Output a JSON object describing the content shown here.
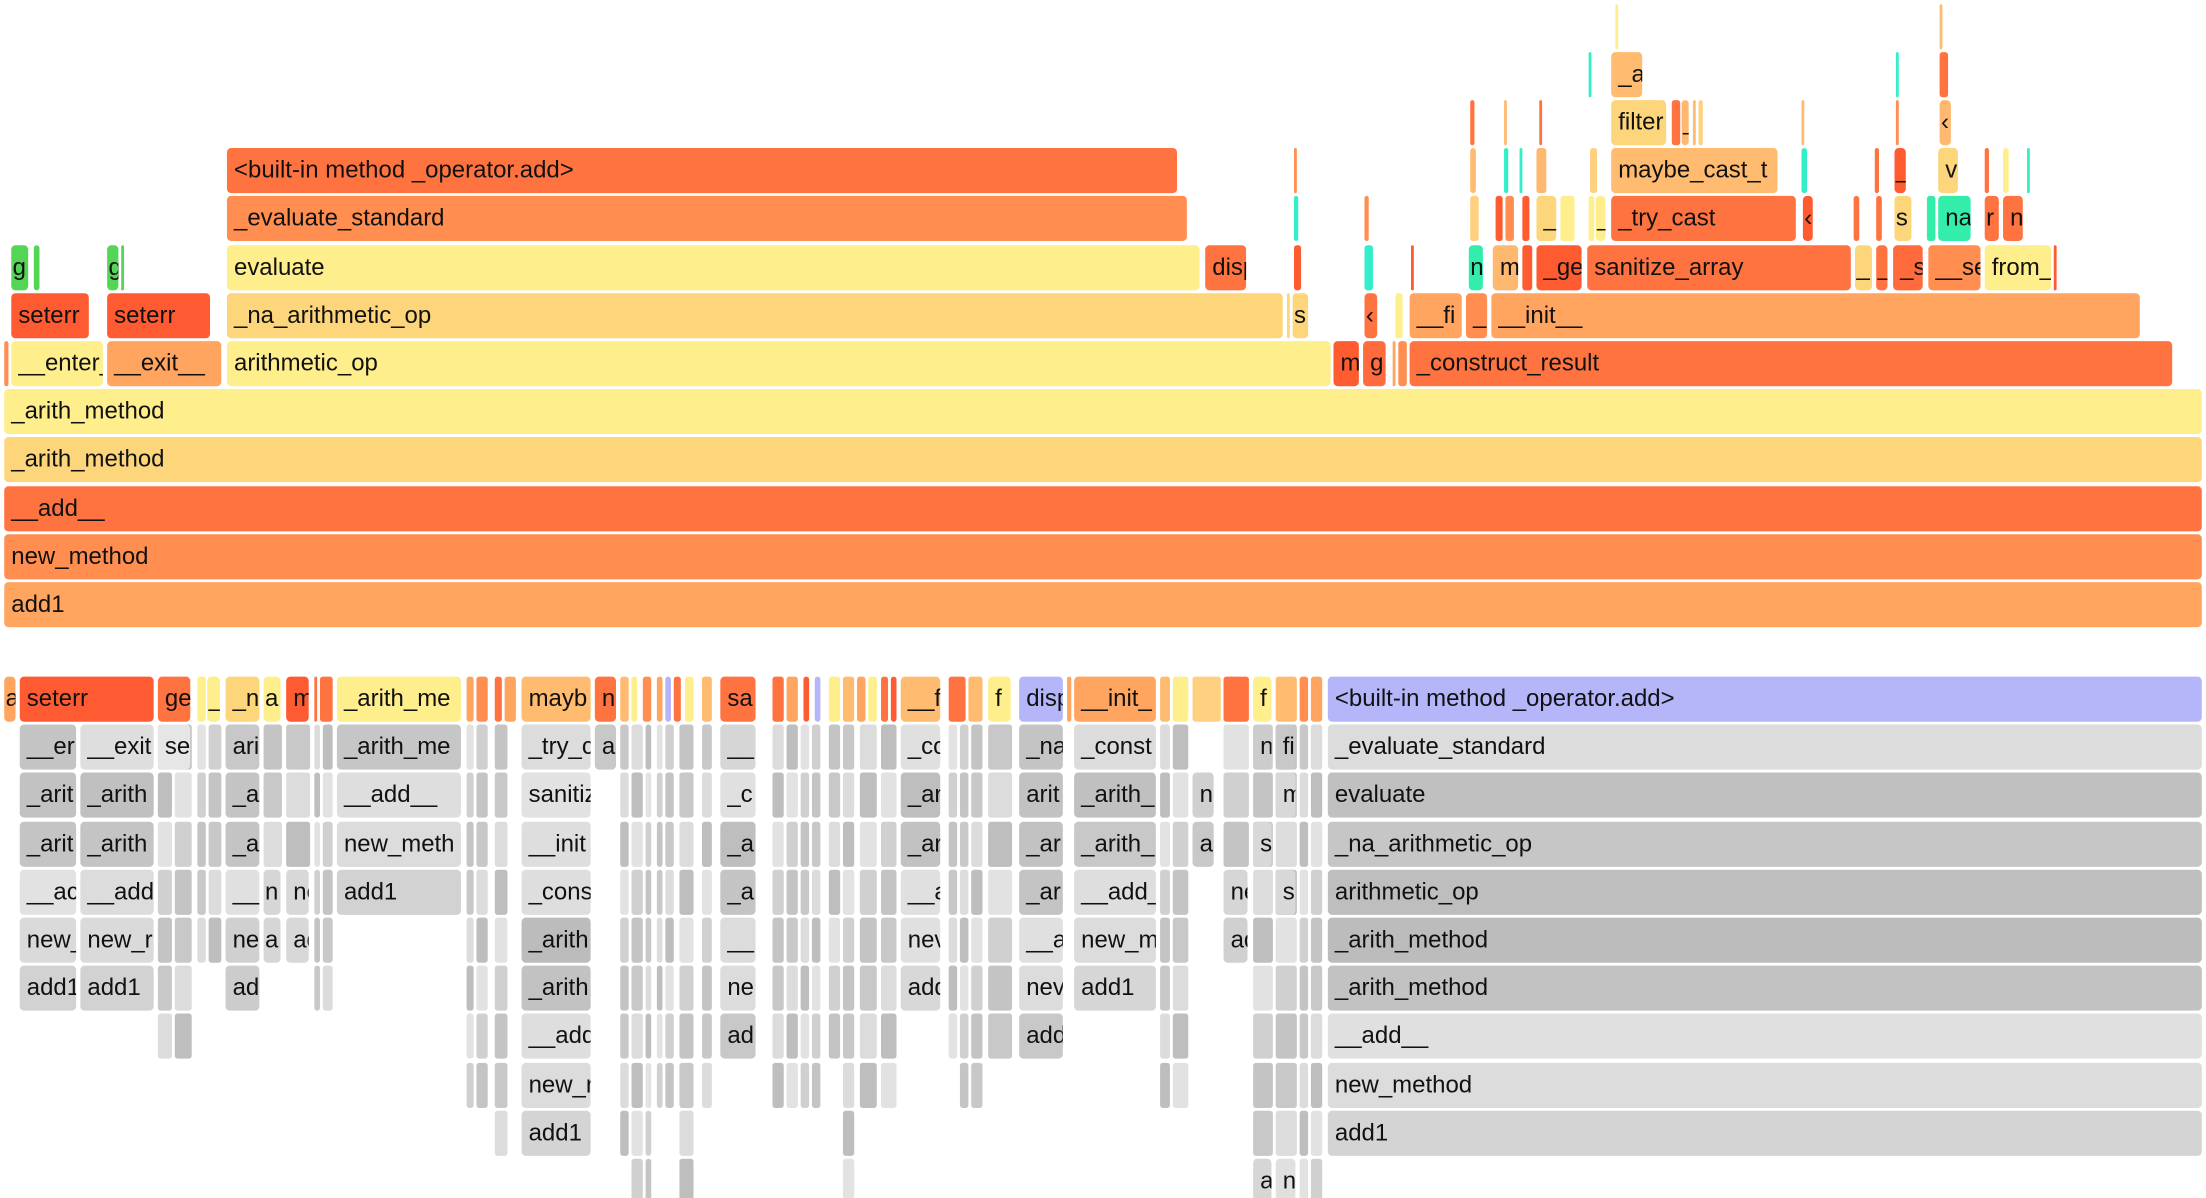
{
  "top_graph": {
    "frames": [
      {
        "label": "add1",
        "color": "#FFA560"
      },
      {
        "label": "new_method",
        "color": "#FF8E50"
      },
      {
        "label": "__add__",
        "color": "#FF7340"
      },
      {
        "label": "_arith_method",
        "color": "#FDD67C"
      },
      {
        "label": "_arith_method",
        "color": "#FFEE8C"
      },
      {
        "label": "__enter__",
        "color": "#FFEE8C"
      },
      {
        "label": "__exit__",
        "color": "#FFA560"
      },
      {
        "label": "arithmetic_op",
        "color": "#FFEE8C"
      },
      {
        "label": "m",
        "color": "#FF5B30"
      },
      {
        "label": "g",
        "color": "#FF6B3C"
      },
      {
        "label": "_construct_result",
        "color": "#FF7340"
      },
      {
        "label": "seterr",
        "color": "#FF5B33"
      },
      {
        "label": "seterr",
        "color": "#FF5B33"
      },
      {
        "label": "_na_arithmetic_op",
        "color": "#FDD67C"
      },
      {
        "label": "s",
        "color": "#FDD67C"
      },
      {
        "label": "‹",
        "color": "#FF7340"
      },
      {
        "label": "__fi",
        "color": "#FFA560"
      },
      {
        "label": "_",
        "color": "#FF8E50"
      },
      {
        "label": "__init__",
        "color": "#FFA560"
      },
      {
        "label": "g",
        "color": "#55D555"
      },
      {
        "label": "g",
        "color": "#55D555"
      },
      {
        "label": "evaluate",
        "color": "#FFEE8C"
      },
      {
        "label": "disp",
        "color": "#FF7340"
      },
      {
        "label": "n",
        "color": "#33EEAA"
      },
      {
        "label": "m",
        "color": "#FFB870"
      },
      {
        "label": "_ge",
        "color": "#FF5B30"
      },
      {
        "label": "sanitize_array",
        "color": "#FF7340"
      },
      {
        "label": "_",
        "color": "#FDD67C"
      },
      {
        "label": "_",
        "color": "#FF7340"
      },
      {
        "label": "_s",
        "color": "#FF6B3C"
      },
      {
        "label": "__se",
        "color": "#FF8E50"
      },
      {
        "label": "from_",
        "color": "#FFEE8C"
      },
      {
        "label": "_evaluate_standard",
        "color": "#FF8E50"
      },
      {
        "label": "_ _",
        "color": "#FDD67C"
      },
      {
        "label": "_",
        "color": "#FFEE8C"
      },
      {
        "label": "_try_cast",
        "color": "#FF7340"
      },
      {
        "label": "‹",
        "color": "#FF5B30"
      },
      {
        "label": "s",
        "color": "#FDD67C"
      },
      {
        "label": "na",
        "color": "#33EEAA"
      },
      {
        "label": "r",
        "color": "#FF7340"
      },
      {
        "label": "n",
        "color": "#FF7340"
      },
      {
        "label": "<built-in method _operator.add>",
        "color": "#FF7340"
      },
      {
        "label": "maybe_cast_t",
        "color": "#FFBB70"
      },
      {
        "label": "_",
        "color": "#FF5B30"
      },
      {
        "label": "v",
        "color": "#FDD67C"
      },
      {
        "label": "filter",
        "color": "#FDD67C"
      },
      {
        "label": "_",
        "color": "#FFB870"
      },
      {
        "label": "‹",
        "color": "#FFB870"
      },
      {
        "label": "_a",
        "color": "#FFBB70"
      }
    ]
  },
  "bottom_graph": {
    "highlight_color": "#B5B5FA",
    "frames": [
      {
        "label": "a",
        "color": "#FFA560"
      },
      {
        "label": "seterr",
        "color": "#FF5B33"
      },
      {
        "label": "ge",
        "color": "#FF7340"
      },
      {
        "label": "_",
        "color": "#FFEE8C"
      },
      {
        "label": "_n",
        "color": "#FDD67C"
      },
      {
        "label": "a",
        "color": "#FFEE8C"
      },
      {
        "label": "m",
        "color": "#FF5B33"
      },
      {
        "label": "_arith_me",
        "color": "#FFEE8C"
      },
      {
        "label": "mayb",
        "color": "#FFBB70"
      },
      {
        "label": "n",
        "color": "#FF7340"
      },
      {
        "label": "sa",
        "color": "#FF7340"
      },
      {
        "label": "__f",
        "color": "#FFBB70"
      },
      {
        "label": "f",
        "color": "#FFEE8C"
      },
      {
        "label": "disp",
        "color": "#B5B5FA"
      },
      {
        "label": "__init_",
        "color": "#FFA560"
      },
      {
        "label": "f",
        "color": "#FFEE8C"
      },
      {
        "label": "<built-in method _operator.add>",
        "color": "#B5B5FA"
      },
      {
        "label": "__er",
        "color": "#C4C4C4"
      },
      {
        "label": "__exit",
        "color": "#DEDEDE"
      },
      {
        "label": "se",
        "color": "#E6E6E6"
      },
      {
        "label": "ari",
        "color": "#C8C8C8"
      },
      {
        "label": "_arith_me",
        "color": "#C6C6C6"
      },
      {
        "label": "_try_c",
        "color": "#DCDCDC"
      },
      {
        "label": "a",
        "color": "#C8C8C8"
      },
      {
        "label": "__",
        "color": "#D6D6D6"
      },
      {
        "label": "_co",
        "color": "#E0E0E0"
      },
      {
        "label": "_na",
        "color": "#C4C4C4"
      },
      {
        "label": "_const",
        "color": "#DCDCDC"
      },
      {
        "label": "n",
        "color": "#CCCCCC"
      },
      {
        "label": "fi",
        "color": "#C8C8C8"
      },
      {
        "label": "_evaluate_standard",
        "color": "#DCDCDC"
      },
      {
        "label": "_arit",
        "color": "#C2C2C2"
      },
      {
        "label": "_arith",
        "color": "#C0C0C0"
      },
      {
        "label": "_a",
        "color": "#C4C4C4"
      },
      {
        "label": "__add__",
        "color": "#DEDEDE"
      },
      {
        "label": "sanitiz",
        "color": "#E2E2E2"
      },
      {
        "label": "_c",
        "color": "#E0E0E0"
      },
      {
        "label": "_ar",
        "color": "#BEBEBE"
      },
      {
        "label": "arit",
        "color": "#C2C2C2"
      },
      {
        "label": "_arith_",
        "color": "#C0C0C0"
      },
      {
        "label": "n",
        "color": "#D0D0D0"
      },
      {
        "label": "m",
        "color": "#D8D8D8"
      },
      {
        "label": "evaluate",
        "color": "#C0C0C0"
      },
      {
        "label": "_arit",
        "color": "#C4C4C4"
      },
      {
        "label": "_arith",
        "color": "#C4C4C4"
      },
      {
        "label": "_a",
        "color": "#C4C4C4"
      },
      {
        "label": "new_meth",
        "color": "#DCDCDC"
      },
      {
        "label": "__init",
        "color": "#DEDEDE"
      },
      {
        "label": "_a",
        "color": "#BEBEBE"
      },
      {
        "label": "_ar",
        "color": "#C2C2C2"
      },
      {
        "label": "_ar",
        "color": "#C2C2C2"
      },
      {
        "label": "_arith_",
        "color": "#C8C8C8"
      },
      {
        "label": "a",
        "color": "#C8C8C8"
      },
      {
        "label": "s",
        "color": "#D8D8D8"
      },
      {
        "label": "_na_arithmetic_op",
        "color": "#C6C6C6"
      },
      {
        "label": "__ac",
        "color": "#E2E2E2"
      },
      {
        "label": "__add",
        "color": "#DCDCDC"
      },
      {
        "label": "__",
        "color": "#E0E0E0"
      },
      {
        "label": "n",
        "color": "#D6D6D6"
      },
      {
        "label": "ne",
        "color": "#D8D8D8"
      },
      {
        "label": "add1",
        "color": "#D2D2D2"
      },
      {
        "label": "_cons",
        "color": "#DEDEDE"
      },
      {
        "label": "_a",
        "color": "#C4C4C4"
      },
      {
        "label": "__a",
        "color": "#E0E0E0"
      },
      {
        "label": "_ar",
        "color": "#C4C4C4"
      },
      {
        "label": "__add_",
        "color": "#DEDEDE"
      },
      {
        "label": "ne",
        "color": "#D6D6D6"
      },
      {
        "label": "s",
        "color": "#D8D8D8"
      },
      {
        "label": "arithmetic_op",
        "color": "#BEBEBE"
      },
      {
        "label": "new_",
        "color": "#DADADA"
      },
      {
        "label": "new_r",
        "color": "#DADADA"
      },
      {
        "label": "ne",
        "color": "#D0D0D0"
      },
      {
        "label": "a",
        "color": "#D6D6D6"
      },
      {
        "label": "ad",
        "color": "#D8D8D8"
      },
      {
        "label": "_arith",
        "color": "#BCBCBC"
      },
      {
        "label": "__",
        "color": "#DCDCDC"
      },
      {
        "label": "nev",
        "color": "#E0E0E0"
      },
      {
        "label": "__a",
        "color": "#E0E0E0"
      },
      {
        "label": "new_m",
        "color": "#DCDCDC"
      },
      {
        "label": "ad",
        "color": "#D0D0D0"
      },
      {
        "label": "_arith_method",
        "color": "#BCBCBC"
      },
      {
        "label": "add1",
        "color": "#D2D2D2"
      },
      {
        "label": "add1",
        "color": "#D2D2D2"
      },
      {
        "label": "ad",
        "color": "#CCCCCC"
      },
      {
        "label": "_arith",
        "color": "#C2C2C2"
      },
      {
        "label": "ne",
        "color": "#DCDCDC"
      },
      {
        "label": "add",
        "color": "#D8D8D8"
      },
      {
        "label": "nev",
        "color": "#DCDCDC"
      },
      {
        "label": "add1",
        "color": "#D6D6D6"
      },
      {
        "label": "_arith_method",
        "color": "#C2C2C2"
      },
      {
        "label": "__add",
        "color": "#DEDEDE"
      },
      {
        "label": "ad",
        "color": "#C8C8C8"
      },
      {
        "label": "add",
        "color": "#C8C8C8"
      },
      {
        "label": "__add__",
        "color": "#E0E0E0"
      },
      {
        "label": "new_r",
        "color": "#DCDCDC"
      },
      {
        "label": "new_method",
        "color": "#DCDCDC"
      },
      {
        "label": "add1",
        "color": "#D4D4D4"
      },
      {
        "label": "add1",
        "color": "#D4D4D4"
      },
      {
        "label": "a",
        "color": "#D6D6D6"
      },
      {
        "label": "n",
        "color": "#E0E0E0"
      }
    ]
  }
}
